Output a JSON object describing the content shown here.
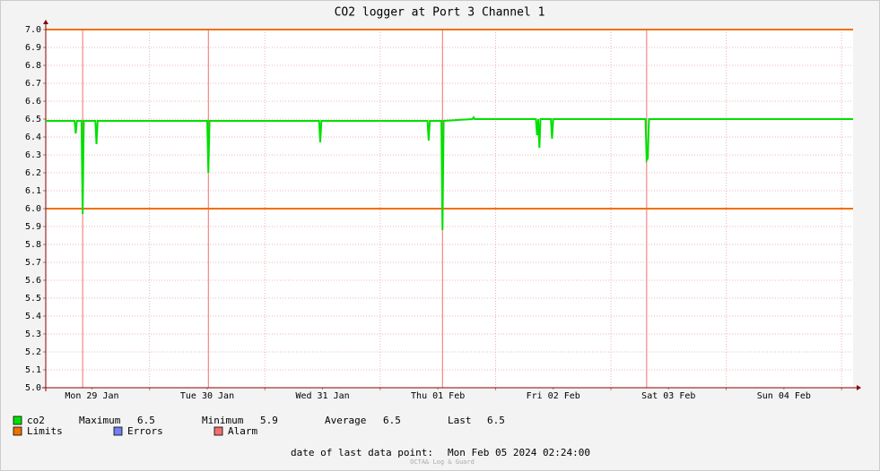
{
  "chart_data": {
    "type": "line",
    "title": "CO2 logger at Port 3 Channel 1",
    "x": [
      0,
      0.25,
      0.26,
      0.27,
      0.3,
      0.31,
      0.32,
      0.33,
      0.43,
      0.44,
      0.45,
      0.46,
      1.0,
      1.4,
      1.41,
      1.42,
      1.43,
      2.0,
      2.37,
      2.38,
      2.39,
      3.0,
      3.31,
      3.32,
      3.33,
      3.42,
      3.43,
      3.44,
      3.45,
      3.7,
      3.71,
      3.72,
      4.0,
      4.25,
      4.26,
      4.27,
      4.28,
      4.29,
      4.38,
      4.39,
      4.4,
      5.0,
      5.19,
      5.2,
      5.21,
      5.22,
      5.23,
      5.24,
      6.0,
      7.0
    ],
    "series": [
      {
        "name": "co2",
        "color": "#00e000",
        "values": [
          6.49,
          6.49,
          6.42,
          6.49,
          6.49,
          6.49,
          5.97,
          6.49,
          6.49,
          6.36,
          6.49,
          6.49,
          6.49,
          6.49,
          6.2,
          6.49,
          6.49,
          6.49,
          6.49,
          6.37,
          6.49,
          6.49,
          6.49,
          6.38,
          6.49,
          6.49,
          6.49,
          5.88,
          6.49,
          6.5,
          6.51,
          6.5,
          6.5,
          6.5,
          6.41,
          6.5,
          6.34,
          6.5,
          6.5,
          6.39,
          6.5,
          6.5,
          6.5,
          6.5,
          6.27,
          6.28,
          6.5,
          6.5,
          6.5,
          6.5
        ]
      }
    ],
    "xlim": [
      0,
      7
    ],
    "xticks": [
      {
        "value": 0.4,
        "label": "Mon 29 Jan"
      },
      {
        "value": 1.4,
        "label": "Tue 30 Jan"
      },
      {
        "value": 2.4,
        "label": "Wed 31 Jan"
      },
      {
        "value": 3.4,
        "label": "Thu 01 Feb"
      },
      {
        "value": 4.4,
        "label": "Fri 02 Feb"
      },
      {
        "value": 5.4,
        "label": "Sat 03 Feb"
      },
      {
        "value": 6.4,
        "label": "Sun 04 Feb"
      }
    ],
    "xgrid": [
      0.9,
      1.9,
      2.9,
      3.9,
      4.9,
      5.9,
      6.9
    ],
    "ylim": [
      5,
      7
    ],
    "yticks": [
      {
        "value": 5,
        "label": "5.0"
      },
      5.1,
      5.2,
      5.3,
      5.4,
      5.5,
      5.6,
      5.7,
      5.8,
      5.9,
      {
        "value": 6,
        "label": "6.0"
      },
      6.1,
      6.2,
      6.3,
      6.4,
      6.5,
      6.6,
      6.7,
      6.8,
      6.9,
      {
        "value": 7,
        "label": "7.0"
      }
    ],
    "grid": true,
    "limits": {
      "name": "Limits",
      "color": "#f07000",
      "values": [
        6.0,
        7.0
      ]
    },
    "errors": {
      "name": "Errors",
      "color": "#7080f0"
    },
    "alarms": {
      "name": "Alarm",
      "color": "#f07070",
      "x": [
        0.32,
        1.41,
        3.44,
        5.21
      ]
    },
    "stats": [
      {
        "label": "Maximum",
        "value": 6.5
      },
      {
        "label": "Minimum",
        "value": 5.9
      },
      {
        "label": "Average",
        "value": 6.5
      },
      {
        "label": "Last",
        "value": 6.5
      }
    ],
    "footer": {
      "label": "date of last data point:",
      "value": "Mon Feb 05 2024 02:24:00"
    },
    "watermark": "OCTA& Log & Guard"
  }
}
